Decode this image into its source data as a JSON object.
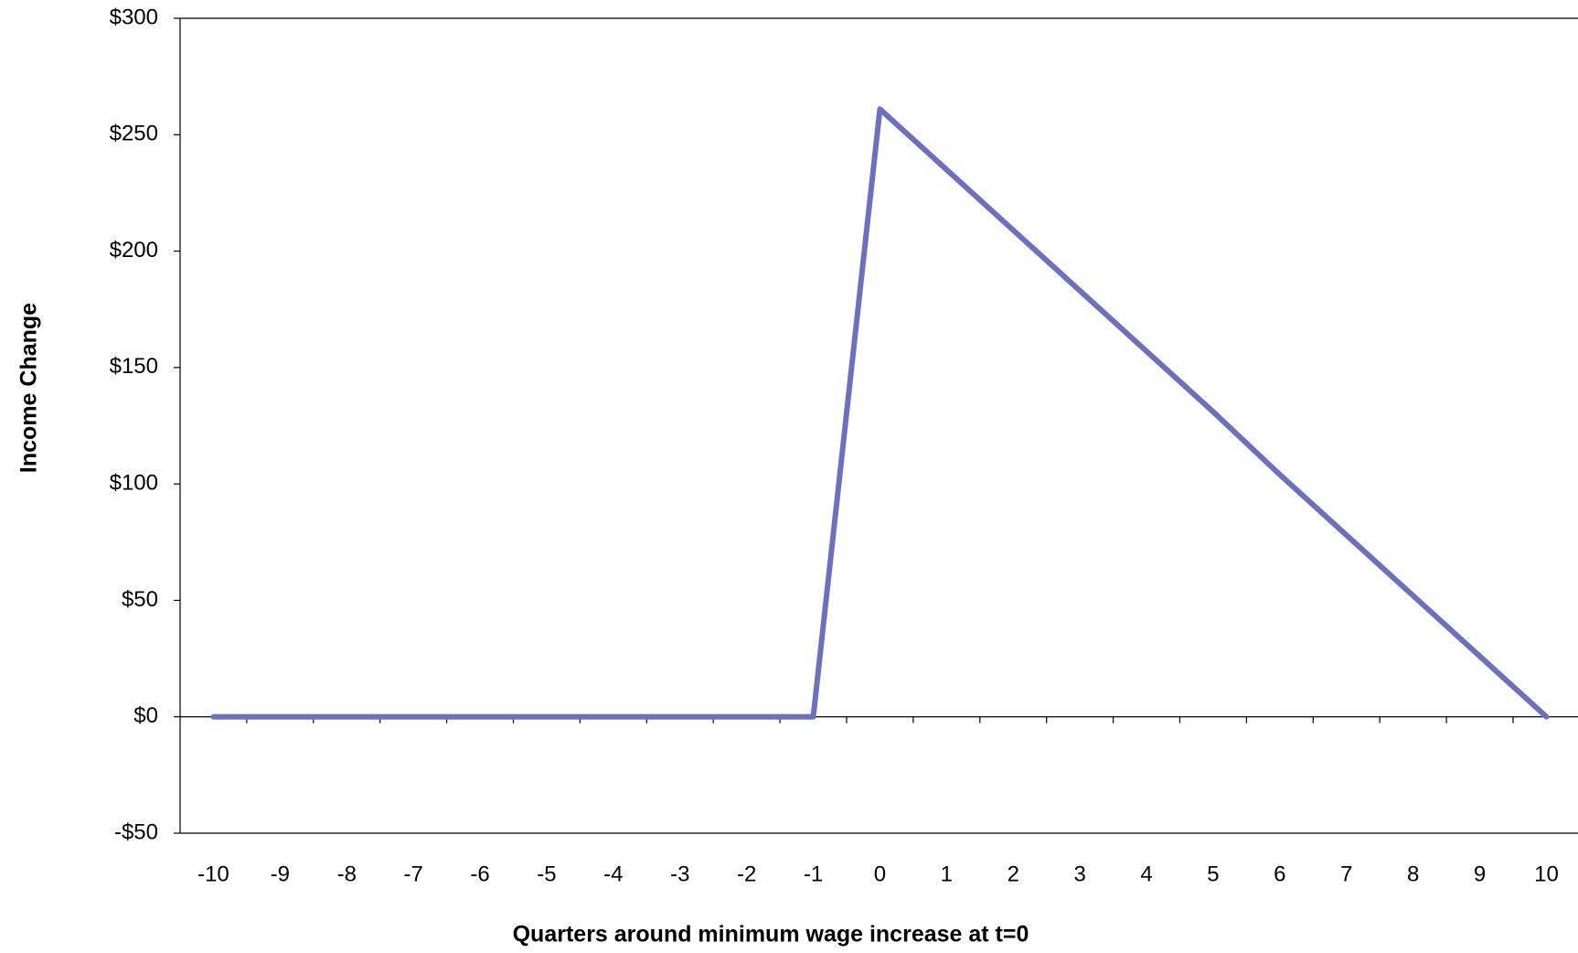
{
  "chart_data": {
    "type": "line",
    "x_label": "Quarters around minimum wage increase at t=0",
    "y_label": "Income Change",
    "categories": [
      -10,
      -9,
      -8,
      -7,
      -6,
      -5,
      -4,
      -3,
      -2,
      -1,
      0,
      1,
      2,
      3,
      4,
      5,
      6,
      7,
      8,
      9,
      10
    ],
    "values": [
      0,
      0,
      0,
      0,
      0,
      0,
      0,
      0,
      0,
      0,
      261,
      235,
      209,
      183,
      157,
      131,
      104,
      78,
      52,
      26,
      0
    ],
    "color": "#6d70c0",
    "ylim": [
      -50,
      300
    ],
    "yticks": [
      {
        "value": 300,
        "label": "$300"
      },
      {
        "value": 250,
        "label": "$250"
      },
      {
        "value": 200,
        "label": "$200"
      },
      {
        "value": 150,
        "label": "$150"
      },
      {
        "value": 100,
        "label": "$100"
      },
      {
        "value": 50,
        "label": "$50"
      },
      {
        "value": 0,
        "label": "$0"
      },
      {
        "value": -50,
        "label": "-$50"
      }
    ],
    "grid": false
  }
}
